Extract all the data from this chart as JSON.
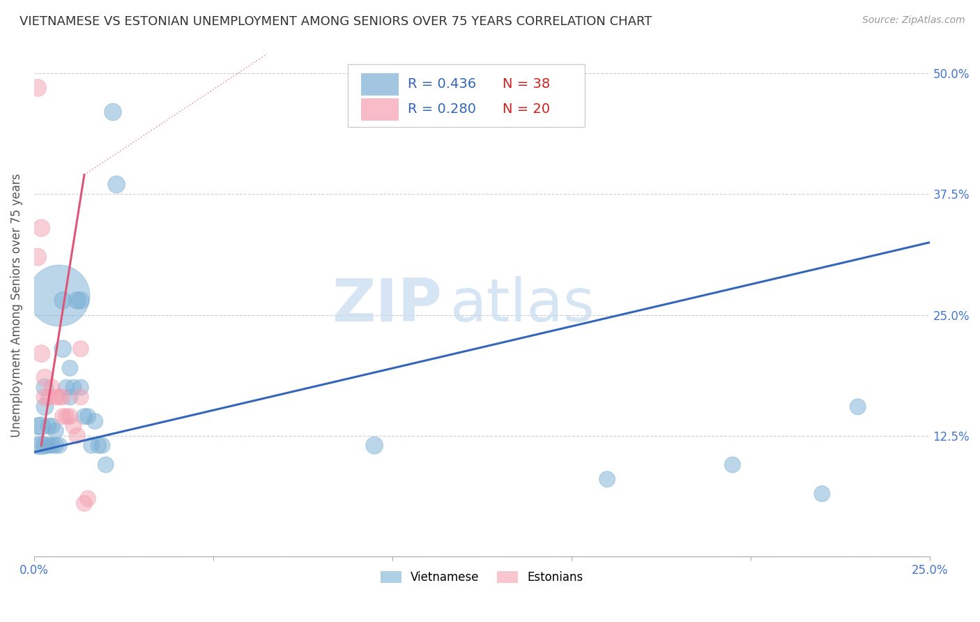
{
  "title": "VIETNAMESE VS ESTONIAN UNEMPLOYMENT AMONG SENIORS OVER 75 YEARS CORRELATION CHART",
  "source": "Source: ZipAtlas.com",
  "ylabel": "Unemployment Among Seniors over 75 years",
  "xlim": [
    0,
    0.25
  ],
  "ylim": [
    0,
    0.52
  ],
  "yticks": [
    0,
    0.125,
    0.25,
    0.375,
    0.5
  ],
  "ytick_labels": [
    "",
    "12.5%",
    "25.0%",
    "37.5%",
    "50.0%"
  ],
  "xticks": [
    0,
    0.05,
    0.1,
    0.15,
    0.2,
    0.25
  ],
  "xtick_labels": [
    "0.0%",
    "",
    "",
    "",
    "",
    "25.0%"
  ],
  "blue_color": "#7bafd4",
  "pink_color": "#f4a0b0",
  "blue_line_color": "#3366bb",
  "pink_line_color": "#dd5577",
  "legend_r_blue": "R = 0.436",
  "legend_n_blue": "N = 38",
  "legend_r_pink": "R = 0.280",
  "legend_n_pink": "N = 20",
  "label_vietnamese": "Vietnamese",
  "label_estonians": "Estonians",
  "watermark_zip": "ZIP",
  "watermark_atlas": "atlas",
  "title_fontsize": 13,
  "axis_label_color": "#4477cc",
  "r_text_color": "#3366bb",
  "n_text_color": "#cc2222",
  "vietnamese_x": [
    0.001,
    0.001,
    0.002,
    0.002,
    0.003,
    0.003,
    0.003,
    0.004,
    0.004,
    0.005,
    0.005,
    0.006,
    0.006,
    0.007,
    0.007,
    0.008,
    0.008,
    0.009,
    0.01,
    0.01,
    0.011,
    0.012,
    0.013,
    0.013,
    0.014,
    0.015,
    0.016,
    0.017,
    0.018,
    0.019,
    0.02,
    0.022,
    0.023,
    0.095,
    0.16,
    0.195,
    0.22,
    0.23
  ],
  "vietnamese_y": [
    0.115,
    0.135,
    0.115,
    0.135,
    0.115,
    0.155,
    0.175,
    0.115,
    0.135,
    0.115,
    0.135,
    0.115,
    0.13,
    0.115,
    0.27,
    0.215,
    0.265,
    0.175,
    0.165,
    0.195,
    0.175,
    0.265,
    0.265,
    0.175,
    0.145,
    0.145,
    0.115,
    0.14,
    0.115,
    0.115,
    0.095,
    0.46,
    0.385,
    0.115,
    0.08,
    0.095,
    0.065,
    0.155
  ],
  "vietnamese_size": [
    35,
    35,
    40,
    40,
    35,
    35,
    35,
    30,
    30,
    30,
    30,
    30,
    30,
    30,
    35,
    35,
    35,
    30,
    30,
    30,
    30,
    35,
    35,
    30,
    30,
    30,
    30,
    30,
    30,
    30,
    30,
    35,
    35,
    35,
    30,
    30,
    30,
    30
  ],
  "vietnamese_big_idx": 14,
  "vietnamese_big_size": 400,
  "estonian_x": [
    0.001,
    0.001,
    0.002,
    0.002,
    0.003,
    0.003,
    0.004,
    0.005,
    0.006,
    0.007,
    0.008,
    0.008,
    0.009,
    0.01,
    0.011,
    0.012,
    0.013,
    0.013,
    0.014,
    0.015
  ],
  "estonian_y": [
    0.485,
    0.31,
    0.34,
    0.21,
    0.185,
    0.165,
    0.165,
    0.175,
    0.165,
    0.165,
    0.165,
    0.145,
    0.145,
    0.145,
    0.135,
    0.125,
    0.215,
    0.165,
    0.055,
    0.06
  ],
  "estonian_size": [
    35,
    35,
    35,
    35,
    35,
    35,
    30,
    30,
    30,
    30,
    30,
    30,
    30,
    30,
    30,
    30,
    30,
    30,
    30,
    30
  ],
  "blue_trend_x0": 0.0,
  "blue_trend_y0": 0.108,
  "blue_trend_x1": 0.25,
  "blue_trend_y1": 0.325,
  "pink_trend_solid_x0": 0.002,
  "pink_trend_solid_y0": 0.115,
  "pink_trend_solid_x1": 0.014,
  "pink_trend_solid_y1": 0.395,
  "pink_trend_dash_x0": 0.014,
  "pink_trend_dash_y0": 0.395,
  "pink_trend_dash_x1": 0.065,
  "pink_trend_dash_y1": 0.52
}
